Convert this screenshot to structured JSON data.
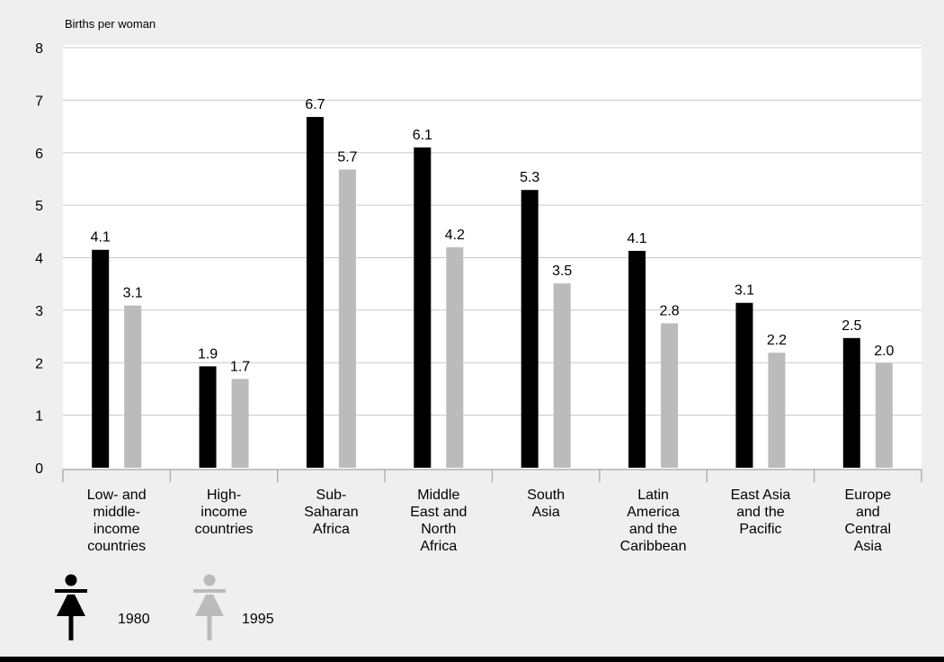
{
  "colors": {
    "series_1980": "#000000",
    "series_1995": "#bbbbbb",
    "plot_background": "#ffffff",
    "page_background": "#efefef",
    "gridline": "#c8c8c8"
  },
  "legend_icons": {
    "1980": "woman-figure-icon",
    "1995": "woman-figure-icon"
  },
  "chart_data": {
    "type": "bar",
    "ylabel": "Births per woman",
    "ylim": [
      0,
      8
    ],
    "yticks": [
      "0",
      "1",
      "2",
      "3",
      "4",
      "5",
      "6",
      "7",
      "8"
    ],
    "grid": true,
    "legend_position": "bottom-left",
    "categories": [
      [
        "Low- and",
        "middle-",
        "income",
        "countries"
      ],
      [
        "High-",
        "income",
        "countries"
      ],
      [
        "Sub-",
        "Saharan",
        "Africa"
      ],
      [
        "Middle",
        "East and",
        "North",
        "Africa"
      ],
      [
        "South",
        "Asia"
      ],
      [
        "Latin",
        "America",
        "and the",
        "Caribbean"
      ],
      [
        "East Asia",
        "and the",
        "Pacific"
      ],
      [
        "Europe",
        "and",
        "Central",
        "Asia"
      ]
    ],
    "series": [
      {
        "name": "1980",
        "values": [
          4.15,
          1.93,
          6.68,
          6.1,
          5.29,
          4.13,
          3.14,
          2.47
        ],
        "labels": [
          "4.1",
          "1.9",
          "6.7",
          "6.1",
          "5.3",
          "4.1",
          "3.1",
          "2.5"
        ]
      },
      {
        "name": "1995",
        "values": [
          3.09,
          1.69,
          5.68,
          4.2,
          3.51,
          2.75,
          2.19,
          1.99
        ],
        "labels": [
          "3.1",
          "1.7",
          "5.7",
          "4.2",
          "3.5",
          "2.8",
          "2.2",
          "2.0"
        ]
      }
    ]
  }
}
